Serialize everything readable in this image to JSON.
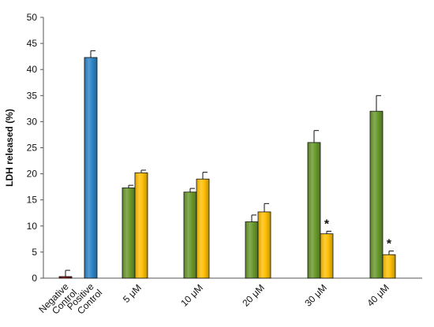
{
  "chart_data": {
    "type": "bar",
    "ylabel": "LDH released (%)",
    "ylim": [
      0,
      50
    ],
    "yticks": [
      0,
      5,
      10,
      15,
      20,
      25,
      30,
      35,
      40,
      45,
      50
    ],
    "grid": false,
    "legend": "none",
    "groups": [
      {
        "label": "Negative Control",
        "label_lines": [
          "Negative",
          "Control"
        ],
        "bars": [
          {
            "value": 0.3,
            "error": 1.2,
            "color": "#8b0000",
            "significant": false
          }
        ]
      },
      {
        "label": "Positive Control",
        "label_lines": [
          "Positive",
          "Control"
        ],
        "bars": [
          {
            "value": 42.3,
            "error": 1.3,
            "color": "#2f86c8",
            "significant": false
          }
        ]
      },
      {
        "label": "5 μM",
        "label_lines": [
          "5 μM"
        ],
        "bars": [
          {
            "value": 17.3,
            "error": 0.5,
            "color": "#6b9a2e",
            "significant": false
          },
          {
            "value": 20.2,
            "error": 0.5,
            "color": "#ffc107",
            "significant": false
          }
        ]
      },
      {
        "label": "10 μM",
        "label_lines": [
          "10 μM"
        ],
        "bars": [
          {
            "value": 16.5,
            "error": 0.7,
            "color": "#6b9a2e",
            "significant": false
          },
          {
            "value": 19.0,
            "error": 1.3,
            "color": "#ffc107",
            "significant": false
          }
        ]
      },
      {
        "label": "20 μM",
        "label_lines": [
          "20 μM"
        ],
        "bars": [
          {
            "value": 10.8,
            "error": 1.3,
            "color": "#6b9a2e",
            "significant": false
          },
          {
            "value": 12.7,
            "error": 1.6,
            "color": "#ffc107",
            "significant": false
          }
        ]
      },
      {
        "label": "30 μM",
        "label_lines": [
          "30 μM"
        ],
        "bars": [
          {
            "value": 26.0,
            "error": 2.3,
            "color": "#6b9a2e",
            "significant": false
          },
          {
            "value": 8.5,
            "error": 0.5,
            "color": "#ffc107",
            "significant": true
          }
        ]
      },
      {
        "label": "40 μM",
        "label_lines": [
          "40 μM"
        ],
        "bars": [
          {
            "value": 32.0,
            "error": 3.0,
            "color": "#6b9a2e",
            "significant": false
          },
          {
            "value": 4.5,
            "error": 0.7,
            "color": "#ffc107",
            "significant": true
          }
        ]
      }
    ],
    "significance_marker": "*"
  }
}
